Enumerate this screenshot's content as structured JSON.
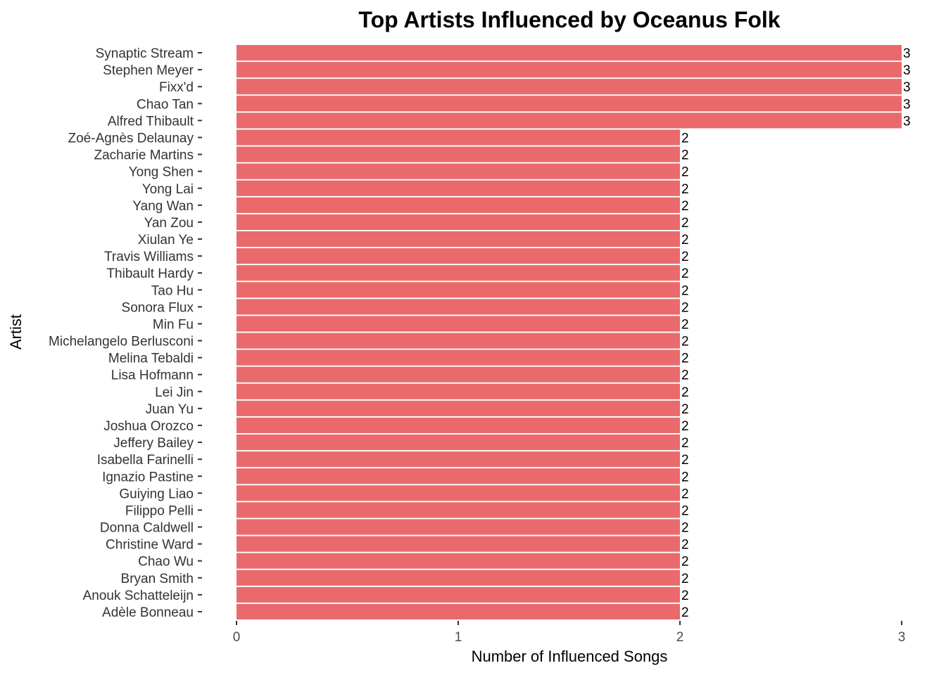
{
  "chart_data": {
    "type": "bar",
    "orientation": "horizontal",
    "title": "Top Artists Influenced by Oceanus Folk",
    "xlabel": "Number of Influenced Songs",
    "ylabel": "Artist",
    "xlim": [
      0,
      3
    ],
    "x_ticks": [
      0,
      1,
      2,
      3
    ],
    "grid": false,
    "bar_color": "#EA6A6C",
    "categories": [
      "Synaptic Stream",
      "Stephen Meyer",
      "Fixx'd",
      "Chao Tan",
      "Alfred Thibault",
      "Zoé-Agnès Delaunay",
      "Zacharie Martins",
      "Yong Shen",
      "Yong Lai",
      "Yang Wan",
      "Yan Zou",
      "Xiulan Ye",
      "Travis Williams",
      "Thibault Hardy",
      "Tao Hu",
      "Sonora Flux",
      "Min Fu",
      "Michelangelo Berlusconi",
      "Melina Tebaldi",
      "Lisa Hofmann",
      "Lei Jin",
      "Juan Yu",
      "Joshua Orozco",
      "Jeffery Bailey",
      "Isabella Farinelli",
      "Ignazio Pastine",
      "Guiying Liao",
      "Filippo Pelli",
      "Donna Caldwell",
      "Christine Ward",
      "Chao Wu",
      "Bryan Smith",
      "Anouk Schatteleijn",
      "Adèle Bonneau"
    ],
    "values": [
      3,
      3,
      3,
      3,
      3,
      2,
      2,
      2,
      2,
      2,
      2,
      2,
      2,
      2,
      2,
      2,
      2,
      2,
      2,
      2,
      2,
      2,
      2,
      2,
      2,
      2,
      2,
      2,
      2,
      2,
      2,
      2,
      2,
      2
    ]
  }
}
